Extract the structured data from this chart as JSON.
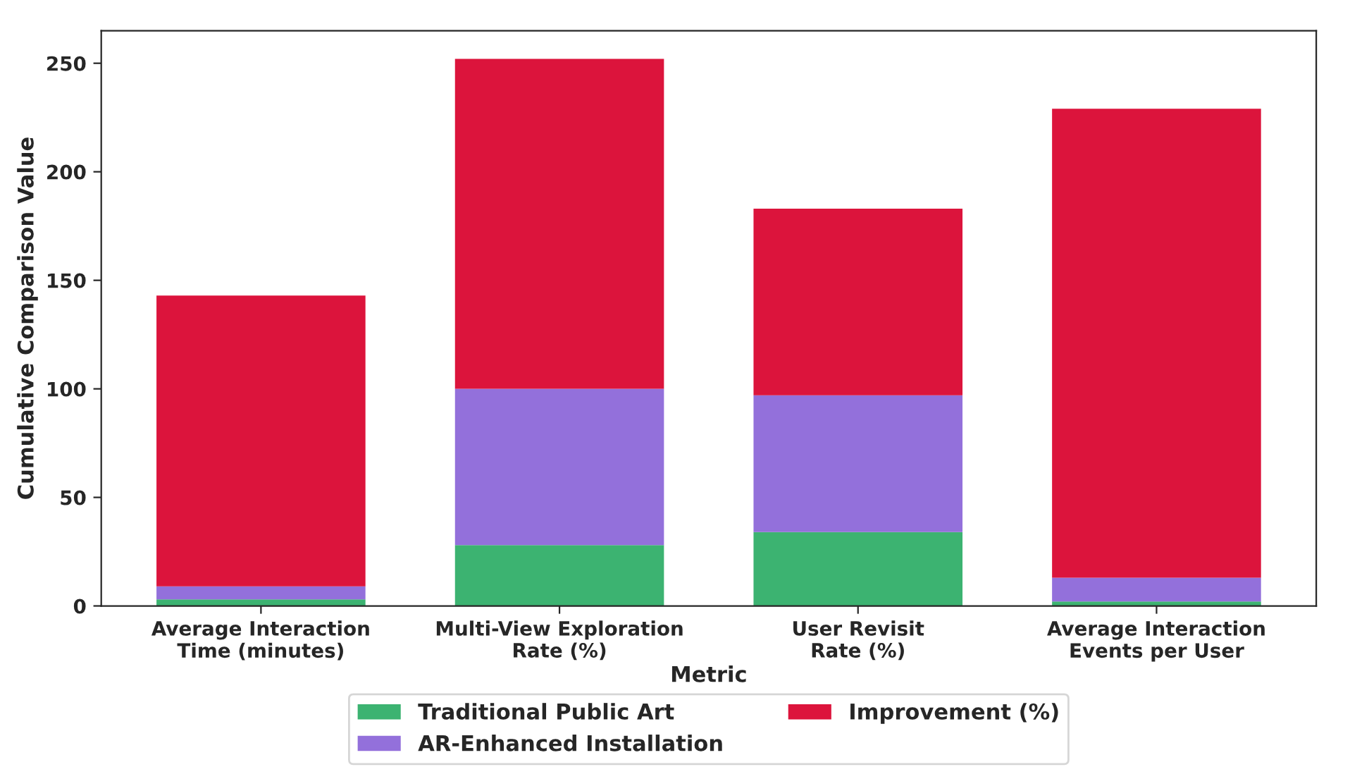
{
  "chart_data": {
    "type": "bar",
    "stacked": true,
    "xlabel": "Metric",
    "ylabel": "Cumulative Comparison Value",
    "categories": [
      "Average Interaction\nTime (minutes)",
      "Multi-View Exploration\nRate (%)",
      "User Revisit\nRate (%)",
      "Average Interaction\nEvents per User"
    ],
    "series": [
      {
        "name": "Traditional Public Art",
        "color": "#3cb371",
        "values": [
          3,
          28,
          34,
          2
        ]
      },
      {
        "name": "AR-Enhanced Installation",
        "color": "#9370db",
        "values": [
          6,
          72,
          63,
          11
        ]
      },
      {
        "name": "Improvement (%)",
        "color": "#dc143c",
        "values": [
          134,
          152,
          86,
          216
        ]
      }
    ],
    "ylim": [
      0,
      265
    ],
    "yticks": [
      0,
      50,
      100,
      150,
      200,
      250
    ],
    "grid": false,
    "legend": "bottom"
  }
}
